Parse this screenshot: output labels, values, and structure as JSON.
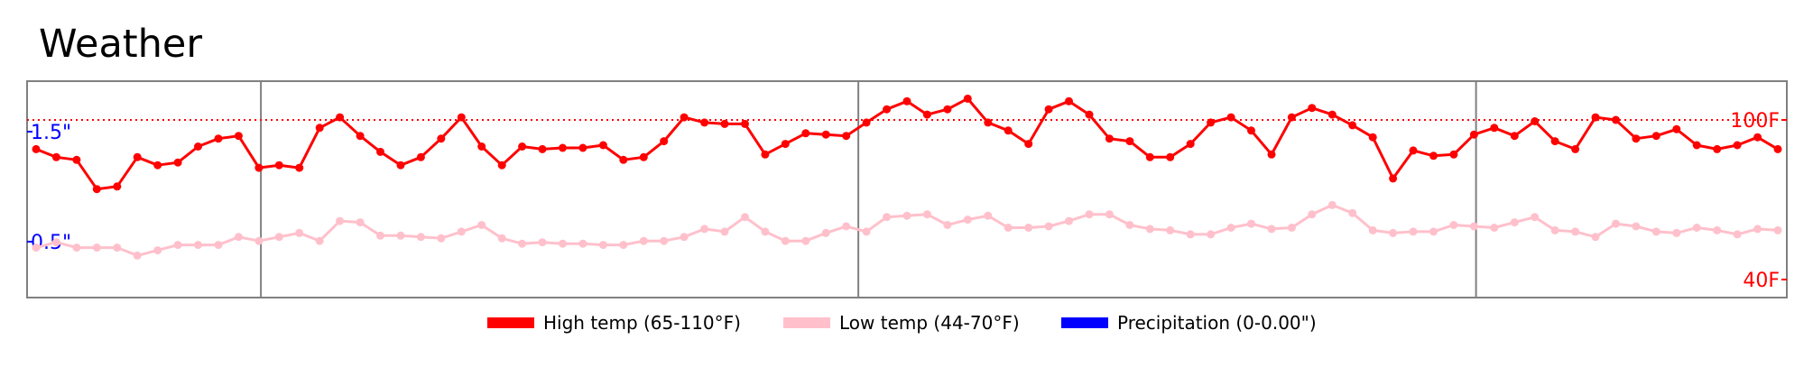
{
  "chart_data": {
    "type": "line",
    "title": "Weather",
    "xlabel": "",
    "ylabel": "",
    "temp_ylim": [
      40,
      110
    ],
    "precip_ylim": [
      0,
      2
    ],
    "grid": false,
    "legend_position": "bottom-center",
    "colors": {
      "high": "#ff0000",
      "low": "#ffc0cb",
      "precip": "#0000ff",
      "frame": "#808080",
      "divider": "#808080"
    },
    "right_ticks": [
      {
        "value": 100,
        "label": "100F"
      },
      {
        "value": 40,
        "label": "40F"
      }
    ],
    "left_ticks": [
      {
        "value": 1.5,
        "label": "1.5\""
      },
      {
        "value": 0.5,
        "label": "0.5\""
      }
    ],
    "reference_line": {
      "value": 100,
      "style": "dotted"
    },
    "divider_indices": [
      11.1,
      40.6,
      71.1
    ],
    "series": [
      {
        "name": "High temp (65-110°F)",
        "key": "high",
        "values": [
          89,
          86,
          85,
          74,
          75,
          86,
          83,
          84,
          90,
          93,
          94,
          82,
          83,
          82,
          97,
          101,
          94,
          88,
          83,
          86,
          93,
          101,
          90,
          83,
          90,
          89,
          89.5,
          89.5,
          90.5,
          85,
          86,
          92,
          101,
          99,
          98.5,
          98.5,
          87,
          91,
          95,
          94.5,
          94,
          99,
          104,
          107,
          102,
          104,
          108,
          99,
          96,
          91,
          104,
          107,
          102,
          93,
          92,
          86,
          86,
          91,
          99,
          101,
          96,
          87,
          101,
          104.5,
          102,
          98,
          93.5,
          78,
          88.5,
          86.5,
          87,
          94.5,
          97,
          94,
          99.5,
          92,
          89,
          101,
          100,
          93,
          94,
          96.5,
          90.5,
          89,
          90.5,
          93.5,
          89
        ]
      },
      {
        "name": "Low temp (44-70°F)",
        "key": "low",
        "values": [
          52,
          54,
          52,
          52,
          52,
          49,
          51,
          53,
          53,
          53,
          56,
          54.5,
          56,
          57.5,
          54.5,
          62,
          61.5,
          56.5,
          56.5,
          56,
          55.5,
          58,
          60.5,
          55.5,
          53.5,
          54,
          53.5,
          53.5,
          53,
          53,
          54.5,
          54.5,
          56,
          59,
          58,
          63.5,
          58,
          54.5,
          54.5,
          57.5,
          60,
          58,
          63.5,
          64,
          64.5,
          60.5,
          62.5,
          64,
          59.5,
          59.5,
          60,
          62,
          64.5,
          64.5,
          60.5,
          59,
          58.5,
          57,
          57,
          59.5,
          61,
          59,
          59.5,
          64.5,
          68,
          65,
          58.5,
          57.5,
          58,
          58,
          60.5,
          60,
          59.5,
          61.5,
          63.5,
          58.5,
          58,
          56,
          61,
          60,
          58,
          57.5,
          59.5,
          58.5,
          57,
          59,
          58.5
        ]
      },
      {
        "name": "Precipitation (0-0.00\")",
        "key": "precip",
        "values": []
      }
    ]
  }
}
